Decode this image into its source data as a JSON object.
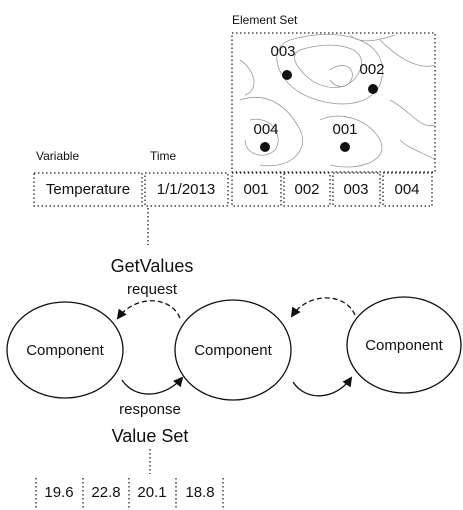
{
  "element_set": {
    "title": "Element Set",
    "elements": [
      "003",
      "002",
      "004",
      "001"
    ]
  },
  "request_row": {
    "variable_label": "Variable",
    "time_label": "Time",
    "variable": "Temperature",
    "time": "1/1/2013",
    "elements": [
      "001",
      "002",
      "003",
      "004"
    ]
  },
  "operation": "GetValues",
  "request": "request",
  "response": "response",
  "components": [
    "Component",
    "Component",
    "Component"
  ],
  "value_set": {
    "title": "Value Set",
    "values": [
      19.6,
      22.8,
      20.1,
      18.8
    ]
  }
}
